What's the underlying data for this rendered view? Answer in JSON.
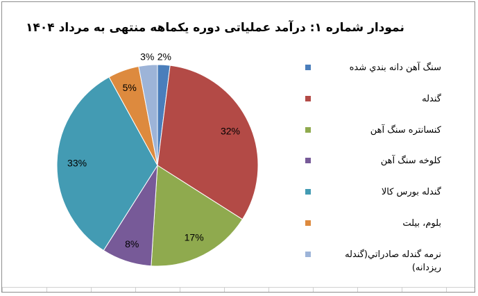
{
  "chart_data": {
    "type": "pie",
    "title": "نمودار شماره ۱: درآمد عملیاتی دوره یکماهه منتهی به مرداد ۱۴۰۴",
    "slices": [
      {
        "label": "سنگ آهن دانه بندي شده",
        "value": 2,
        "display": "2%",
        "color": "#4a7ebb"
      },
      {
        "label": "گندله",
        "value": 32,
        "display": "32%",
        "color": "#b34a46"
      },
      {
        "label": "كنسانتره سنگ آهن",
        "value": 17,
        "display": "17%",
        "color": "#8faa4e"
      },
      {
        "label": "كلوخه سنگ آهن",
        "value": 8,
        "display": "8%",
        "color": "#775a98"
      },
      {
        "label": "گندله بورس كالا",
        "value": 33,
        "display": "33%",
        "color": "#439bb3"
      },
      {
        "label": "بلوم، بيلت",
        "value": 5,
        "display": "5%",
        "color": "#dd8a3e"
      },
      {
        "label": "نرمه گندله صادراتي(گندله ريزدانه)",
        "value": 3,
        "display": "3%",
        "color": "#9db4d8"
      }
    ],
    "legend_position": "right"
  }
}
